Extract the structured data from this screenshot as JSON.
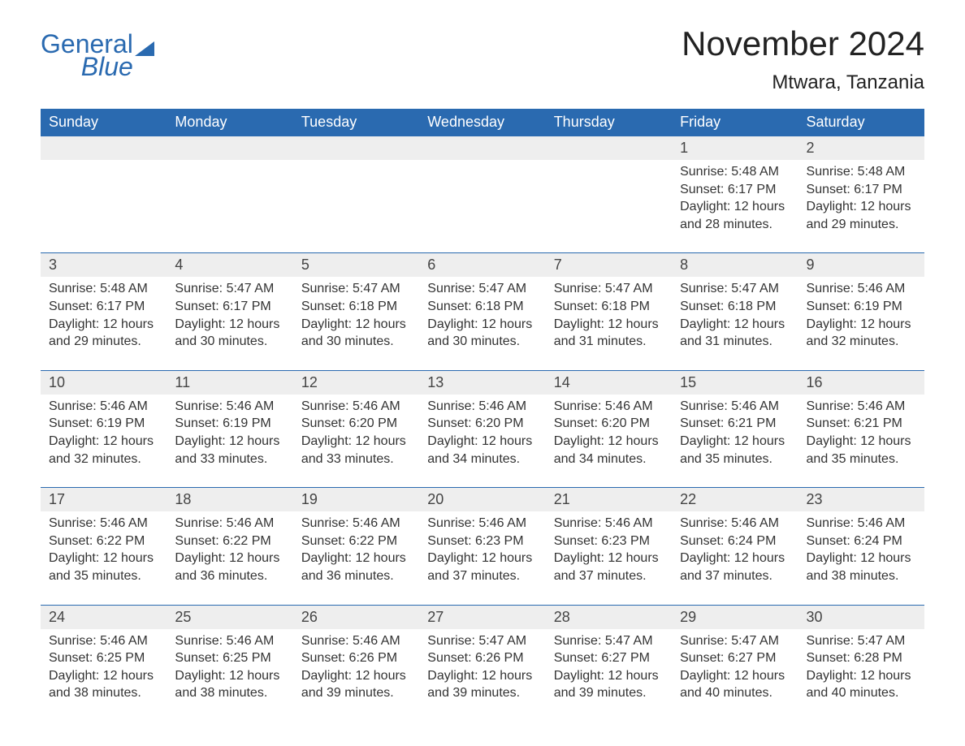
{
  "logo": {
    "top": "General",
    "bottom": "Blue"
  },
  "title": "November 2024",
  "location": "Mtwara, Tanzania",
  "colors": {
    "header_bg": "#2a6ab0",
    "header_text": "#ffffff",
    "daynum_bg": "#eeeeee",
    "body_text": "#333333",
    "page_bg": "#ffffff",
    "row_border": "#2a6ab0"
  },
  "days_of_week": [
    "Sunday",
    "Monday",
    "Tuesday",
    "Wednesday",
    "Thursday",
    "Friday",
    "Saturday"
  ],
  "labels": {
    "sunrise_prefix": "Sunrise: ",
    "sunset_prefix": "Sunset: ",
    "daylight_prefix": "Daylight: ",
    "daylight_hours_word": " hours",
    "daylight_joiner": "and ",
    "daylight_minutes_word": " minutes."
  },
  "weeks": [
    [
      {
        "blank": true
      },
      {
        "blank": true
      },
      {
        "blank": true
      },
      {
        "blank": true
      },
      {
        "blank": true
      },
      {
        "n": 1,
        "sunrise": "5:48 AM",
        "sunset": "6:17 PM",
        "dh": 12,
        "dm": 28
      },
      {
        "n": 2,
        "sunrise": "5:48 AM",
        "sunset": "6:17 PM",
        "dh": 12,
        "dm": 29
      }
    ],
    [
      {
        "n": 3,
        "sunrise": "5:48 AM",
        "sunset": "6:17 PM",
        "dh": 12,
        "dm": 29
      },
      {
        "n": 4,
        "sunrise": "5:47 AM",
        "sunset": "6:17 PM",
        "dh": 12,
        "dm": 30
      },
      {
        "n": 5,
        "sunrise": "5:47 AM",
        "sunset": "6:18 PM",
        "dh": 12,
        "dm": 30
      },
      {
        "n": 6,
        "sunrise": "5:47 AM",
        "sunset": "6:18 PM",
        "dh": 12,
        "dm": 30
      },
      {
        "n": 7,
        "sunrise": "5:47 AM",
        "sunset": "6:18 PM",
        "dh": 12,
        "dm": 31
      },
      {
        "n": 8,
        "sunrise": "5:47 AM",
        "sunset": "6:18 PM",
        "dh": 12,
        "dm": 31
      },
      {
        "n": 9,
        "sunrise": "5:46 AM",
        "sunset": "6:19 PM",
        "dh": 12,
        "dm": 32
      }
    ],
    [
      {
        "n": 10,
        "sunrise": "5:46 AM",
        "sunset": "6:19 PM",
        "dh": 12,
        "dm": 32
      },
      {
        "n": 11,
        "sunrise": "5:46 AM",
        "sunset": "6:19 PM",
        "dh": 12,
        "dm": 33
      },
      {
        "n": 12,
        "sunrise": "5:46 AM",
        "sunset": "6:20 PM",
        "dh": 12,
        "dm": 33
      },
      {
        "n": 13,
        "sunrise": "5:46 AM",
        "sunset": "6:20 PM",
        "dh": 12,
        "dm": 34
      },
      {
        "n": 14,
        "sunrise": "5:46 AM",
        "sunset": "6:20 PM",
        "dh": 12,
        "dm": 34
      },
      {
        "n": 15,
        "sunrise": "5:46 AM",
        "sunset": "6:21 PM",
        "dh": 12,
        "dm": 35
      },
      {
        "n": 16,
        "sunrise": "5:46 AM",
        "sunset": "6:21 PM",
        "dh": 12,
        "dm": 35
      }
    ],
    [
      {
        "n": 17,
        "sunrise": "5:46 AM",
        "sunset": "6:22 PM",
        "dh": 12,
        "dm": 35
      },
      {
        "n": 18,
        "sunrise": "5:46 AM",
        "sunset": "6:22 PM",
        "dh": 12,
        "dm": 36
      },
      {
        "n": 19,
        "sunrise": "5:46 AM",
        "sunset": "6:22 PM",
        "dh": 12,
        "dm": 36
      },
      {
        "n": 20,
        "sunrise": "5:46 AM",
        "sunset": "6:23 PM",
        "dh": 12,
        "dm": 37
      },
      {
        "n": 21,
        "sunrise": "5:46 AM",
        "sunset": "6:23 PM",
        "dh": 12,
        "dm": 37
      },
      {
        "n": 22,
        "sunrise": "5:46 AM",
        "sunset": "6:24 PM",
        "dh": 12,
        "dm": 37
      },
      {
        "n": 23,
        "sunrise": "5:46 AM",
        "sunset": "6:24 PM",
        "dh": 12,
        "dm": 38
      }
    ],
    [
      {
        "n": 24,
        "sunrise": "5:46 AM",
        "sunset": "6:25 PM",
        "dh": 12,
        "dm": 38
      },
      {
        "n": 25,
        "sunrise": "5:46 AM",
        "sunset": "6:25 PM",
        "dh": 12,
        "dm": 38
      },
      {
        "n": 26,
        "sunrise": "5:46 AM",
        "sunset": "6:26 PM",
        "dh": 12,
        "dm": 39
      },
      {
        "n": 27,
        "sunrise": "5:47 AM",
        "sunset": "6:26 PM",
        "dh": 12,
        "dm": 39
      },
      {
        "n": 28,
        "sunrise": "5:47 AM",
        "sunset": "6:27 PM",
        "dh": 12,
        "dm": 39
      },
      {
        "n": 29,
        "sunrise": "5:47 AM",
        "sunset": "6:27 PM",
        "dh": 12,
        "dm": 40
      },
      {
        "n": 30,
        "sunrise": "5:47 AM",
        "sunset": "6:28 PM",
        "dh": 12,
        "dm": 40
      }
    ]
  ]
}
